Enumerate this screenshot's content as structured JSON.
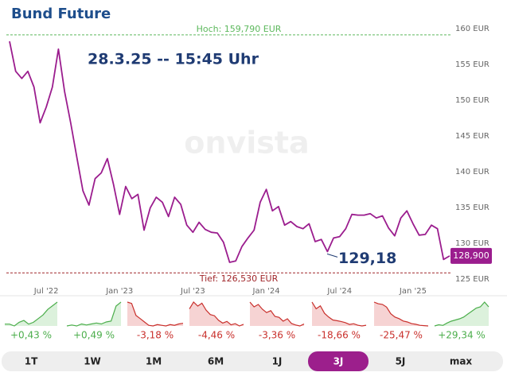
{
  "chart_data": {
    "type": "line",
    "title": "Bund Future",
    "annotation": "28.3.25 -- 15:45 Uhr",
    "watermark": "onvista",
    "color": "#9b1d8e",
    "categories": [
      null,
      null,
      null,
      null,
      null,
      null,
      "Jul '22",
      null,
      null,
      null,
      null,
      null,
      null,
      null,
      null,
      null,
      null,
      null,
      "Jan '23",
      null,
      null,
      null,
      null,
      null,
      null,
      null,
      null,
      null,
      null,
      null,
      "Jul '23",
      null,
      null,
      null,
      null,
      null,
      null,
      null,
      null,
      null,
      null,
      null,
      "Jan '24",
      null,
      null,
      null,
      null,
      null,
      null,
      null,
      null,
      null,
      null,
      null,
      "Jul '24",
      null,
      null,
      null,
      null,
      null,
      null,
      null,
      null,
      null,
      null,
      null,
      "Jan '25",
      null,
      null,
      null,
      null,
      null,
      null
    ],
    "values": [
      158.9,
      154.7,
      153.7,
      154.7,
      152.5,
      147.5,
      149.7,
      152.5,
      157.8,
      151.9,
      147.5,
      142.7,
      138.0,
      136.0,
      139.7,
      140.5,
      142.5,
      138.9,
      134.7,
      138.6,
      136.9,
      137.5,
      132.5,
      135.6,
      137.1,
      136.4,
      134.4,
      137.1,
      136.1,
      133.2,
      132.2,
      133.6,
      132.6,
      132.2,
      132.1,
      130.8,
      128.0,
      128.2,
      130.2,
      131.4,
      132.5,
      136.4,
      138.2,
      135.2,
      135.8,
      133.2,
      133.7,
      133.0,
      132.7,
      133.4,
      130.9,
      131.2,
      129.5,
      131.4,
      131.6,
      132.7,
      134.7,
      134.6,
      134.6,
      134.8,
      134.2,
      134.5,
      132.8,
      131.7,
      134.2,
      135.2,
      133.4,
      131.8,
      131.9,
      133.2,
      132.7,
      128.4,
      128.9
    ],
    "ylim": [
      125,
      160
    ],
    "yticks": [
      {
        "value": 125,
        "label": "125 EUR"
      },
      {
        "value": 130,
        "label": "130 EUR"
      },
      {
        "value": 135,
        "label": "135 EUR"
      },
      {
        "value": 140,
        "label": "140 EUR"
      },
      {
        "value": 145,
        "label": "145 EUR"
      },
      {
        "value": 150,
        "label": "150 EUR"
      },
      {
        "value": 155,
        "label": "155 EUR"
      },
      {
        "value": 160,
        "label": "160 EUR"
      }
    ],
    "high": {
      "value": 159.79,
      "label": "Hoch: 159,790 EUR"
    },
    "low": {
      "value": 126.53,
      "label": "Tief: 126,530 EUR"
    },
    "last": {
      "value": 128.9,
      "label": "128,900"
    },
    "marker": {
      "value": 129.18,
      "label": "129,18"
    }
  },
  "periods": [
    {
      "tab": "1T",
      "change": "+0,43 %",
      "color": "#4cae4c",
      "fill": "#dcf1dc",
      "values": [
        50,
        50,
        49,
        51,
        52,
        50,
        51,
        53,
        55,
        58,
        60,
        62
      ]
    },
    {
      "tab": "1W",
      "change": "+0,49 %",
      "color": "#4cae4c",
      "fill": "#dcf1dc",
      "values": [
        40,
        41,
        40,
        42,
        41,
        42,
        43,
        42,
        44,
        45,
        60,
        64
      ]
    },
    {
      "tab": "1M",
      "change": "-3,18 %",
      "color": "#c9302c",
      "fill": "#f6d3d3",
      "values": [
        80,
        78,
        60,
        55,
        50,
        45,
        44,
        46,
        45,
        44,
        46,
        45,
        47,
        48
      ]
    },
    {
      "tab": "6M",
      "change": "-4,46 %",
      "color": "#c9302c",
      "fill": "#f6d3d3",
      "values": [
        50,
        62,
        55,
        60,
        48,
        40,
        38,
        30,
        25,
        28,
        22,
        24,
        20,
        23
      ]
    },
    {
      "tab": "1J",
      "change": "-3,36 %",
      "color": "#c9302c",
      "fill": "#f6d3d3",
      "values": [
        70,
        60,
        65,
        55,
        48,
        52,
        40,
        38,
        30,
        35,
        25,
        22,
        20,
        24
      ]
    },
    {
      "tab": "3J",
      "change": "-18,66 %",
      "color": "#c9302c",
      "fill": "#f6d3d3",
      "values": [
        90,
        72,
        80,
        60,
        50,
        42,
        40,
        38,
        35,
        30,
        32,
        28,
        26,
        28
      ],
      "active": true
    },
    {
      "tab": "5J",
      "change": "-25,47 %",
      "color": "#c9302c",
      "fill": "#f6d3d3",
      "values": [
        95,
        90,
        88,
        80,
        60,
        50,
        45,
        38,
        35,
        30,
        28,
        25,
        24,
        23
      ]
    },
    {
      "tab": "max",
      "change": "+29,34 %",
      "color": "#4cae4c",
      "fill": "#dcf1dc",
      "values": [
        30,
        32,
        31,
        35,
        38,
        40,
        42,
        45,
        50,
        55,
        60,
        62,
        70,
        62
      ]
    }
  ]
}
